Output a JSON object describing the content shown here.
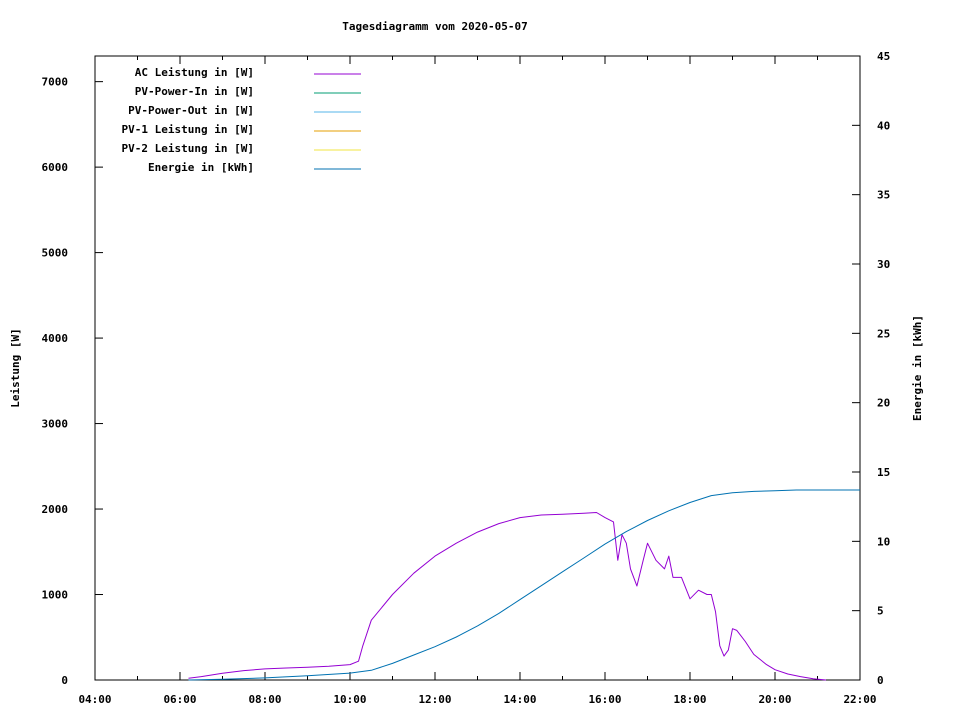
{
  "chart_data": {
    "type": "line",
    "title": "Tagesdiagramm vom 2020-05-07",
    "ylabel": "Leistung [W]",
    "y2label": "Energie in [kWh]",
    "xlim_hours": [
      4,
      22
    ],
    "ylim": [
      0,
      7300
    ],
    "y2lim": [
      0,
      45
    ],
    "xticks": [
      {
        "v": 4,
        "label": "04:00"
      },
      {
        "v": 6,
        "label": "06:00"
      },
      {
        "v": 8,
        "label": "08:00"
      },
      {
        "v": 10,
        "label": "10:00"
      },
      {
        "v": 12,
        "label": "12:00"
      },
      {
        "v": 14,
        "label": "14:00"
      },
      {
        "v": 16,
        "label": "16:00"
      },
      {
        "v": 18,
        "label": "18:00"
      },
      {
        "v": 20,
        "label": "20:00"
      },
      {
        "v": 22,
        "label": "22:00"
      }
    ],
    "yticks": [
      0,
      1000,
      2000,
      3000,
      4000,
      5000,
      6000,
      7000
    ],
    "y2ticks": [
      0,
      5,
      10,
      15,
      20,
      25,
      30,
      35,
      40,
      45
    ],
    "grid": false,
    "legend_position": "top-left",
    "series": [
      {
        "name": "AC Leistung in [W]",
        "color": "#9400d3",
        "axis": "left",
        "x": [
          6.2,
          6.5,
          7.0,
          7.5,
          8.0,
          8.5,
          9.0,
          9.5,
          10.0,
          10.2,
          10.3,
          10.5,
          11.0,
          11.5,
          12.0,
          12.5,
          13.0,
          13.5,
          14.0,
          14.5,
          15.0,
          15.5,
          15.8,
          16.0,
          16.2,
          16.3,
          16.4,
          16.5,
          16.6,
          16.75,
          16.9,
          17.0,
          17.2,
          17.4,
          17.5,
          17.6,
          17.8,
          18.0,
          18.2,
          18.4,
          18.5,
          18.6,
          18.7,
          18.8,
          18.9,
          19.0,
          19.1,
          19.3,
          19.5,
          19.8,
          20.0,
          20.3,
          20.6,
          20.9,
          21.2
        ],
        "y": [
          20,
          40,
          80,
          110,
          130,
          140,
          150,
          160,
          180,
          220,
          400,
          700,
          1000,
          1250,
          1450,
          1600,
          1730,
          1830,
          1900,
          1930,
          1940,
          1950,
          1960,
          1900,
          1850,
          1400,
          1700,
          1600,
          1300,
          1100,
          1400,
          1600,
          1400,
          1300,
          1450,
          1200,
          1200,
          950,
          1050,
          1000,
          1000,
          800,
          400,
          280,
          350,
          600,
          580,
          450,
          300,
          180,
          120,
          70,
          40,
          15,
          0
        ]
      },
      {
        "name": "PV-Power-In in [W]",
        "color": "#009e73",
        "axis": "right",
        "x": [],
        "y": []
      },
      {
        "name": "PV-Power-Out in [W]",
        "color": "#56b4e9",
        "axis": "right",
        "x": [],
        "y": []
      },
      {
        "name": "PV-1 Leistung in [W]",
        "color": "#e69f00",
        "axis": "left",
        "x": [],
        "y": []
      },
      {
        "name": "PV-2 Leistung in [W]",
        "color": "#f0e442",
        "axis": "left",
        "x": [],
        "y": []
      },
      {
        "name": "Energie in [kWh]",
        "color": "#0072b2",
        "axis": "right",
        "x": [
          6.2,
          7.0,
          8.0,
          9.0,
          10.0,
          10.5,
          11.0,
          11.5,
          12.0,
          12.5,
          13.0,
          13.5,
          14.0,
          14.5,
          15.0,
          15.5,
          16.0,
          16.5,
          17.0,
          17.5,
          18.0,
          18.5,
          19.0,
          19.5,
          20.0,
          20.5,
          21.0,
          22.0
        ],
        "y": [
          0,
          0.05,
          0.15,
          0.3,
          0.5,
          0.7,
          1.2,
          1.8,
          2.4,
          3.1,
          3.9,
          4.8,
          5.8,
          6.8,
          7.8,
          8.8,
          9.8,
          10.7,
          11.5,
          12.2,
          12.8,
          13.3,
          13.5,
          13.6,
          13.65,
          13.7,
          13.7,
          13.7
        ]
      }
    ]
  }
}
